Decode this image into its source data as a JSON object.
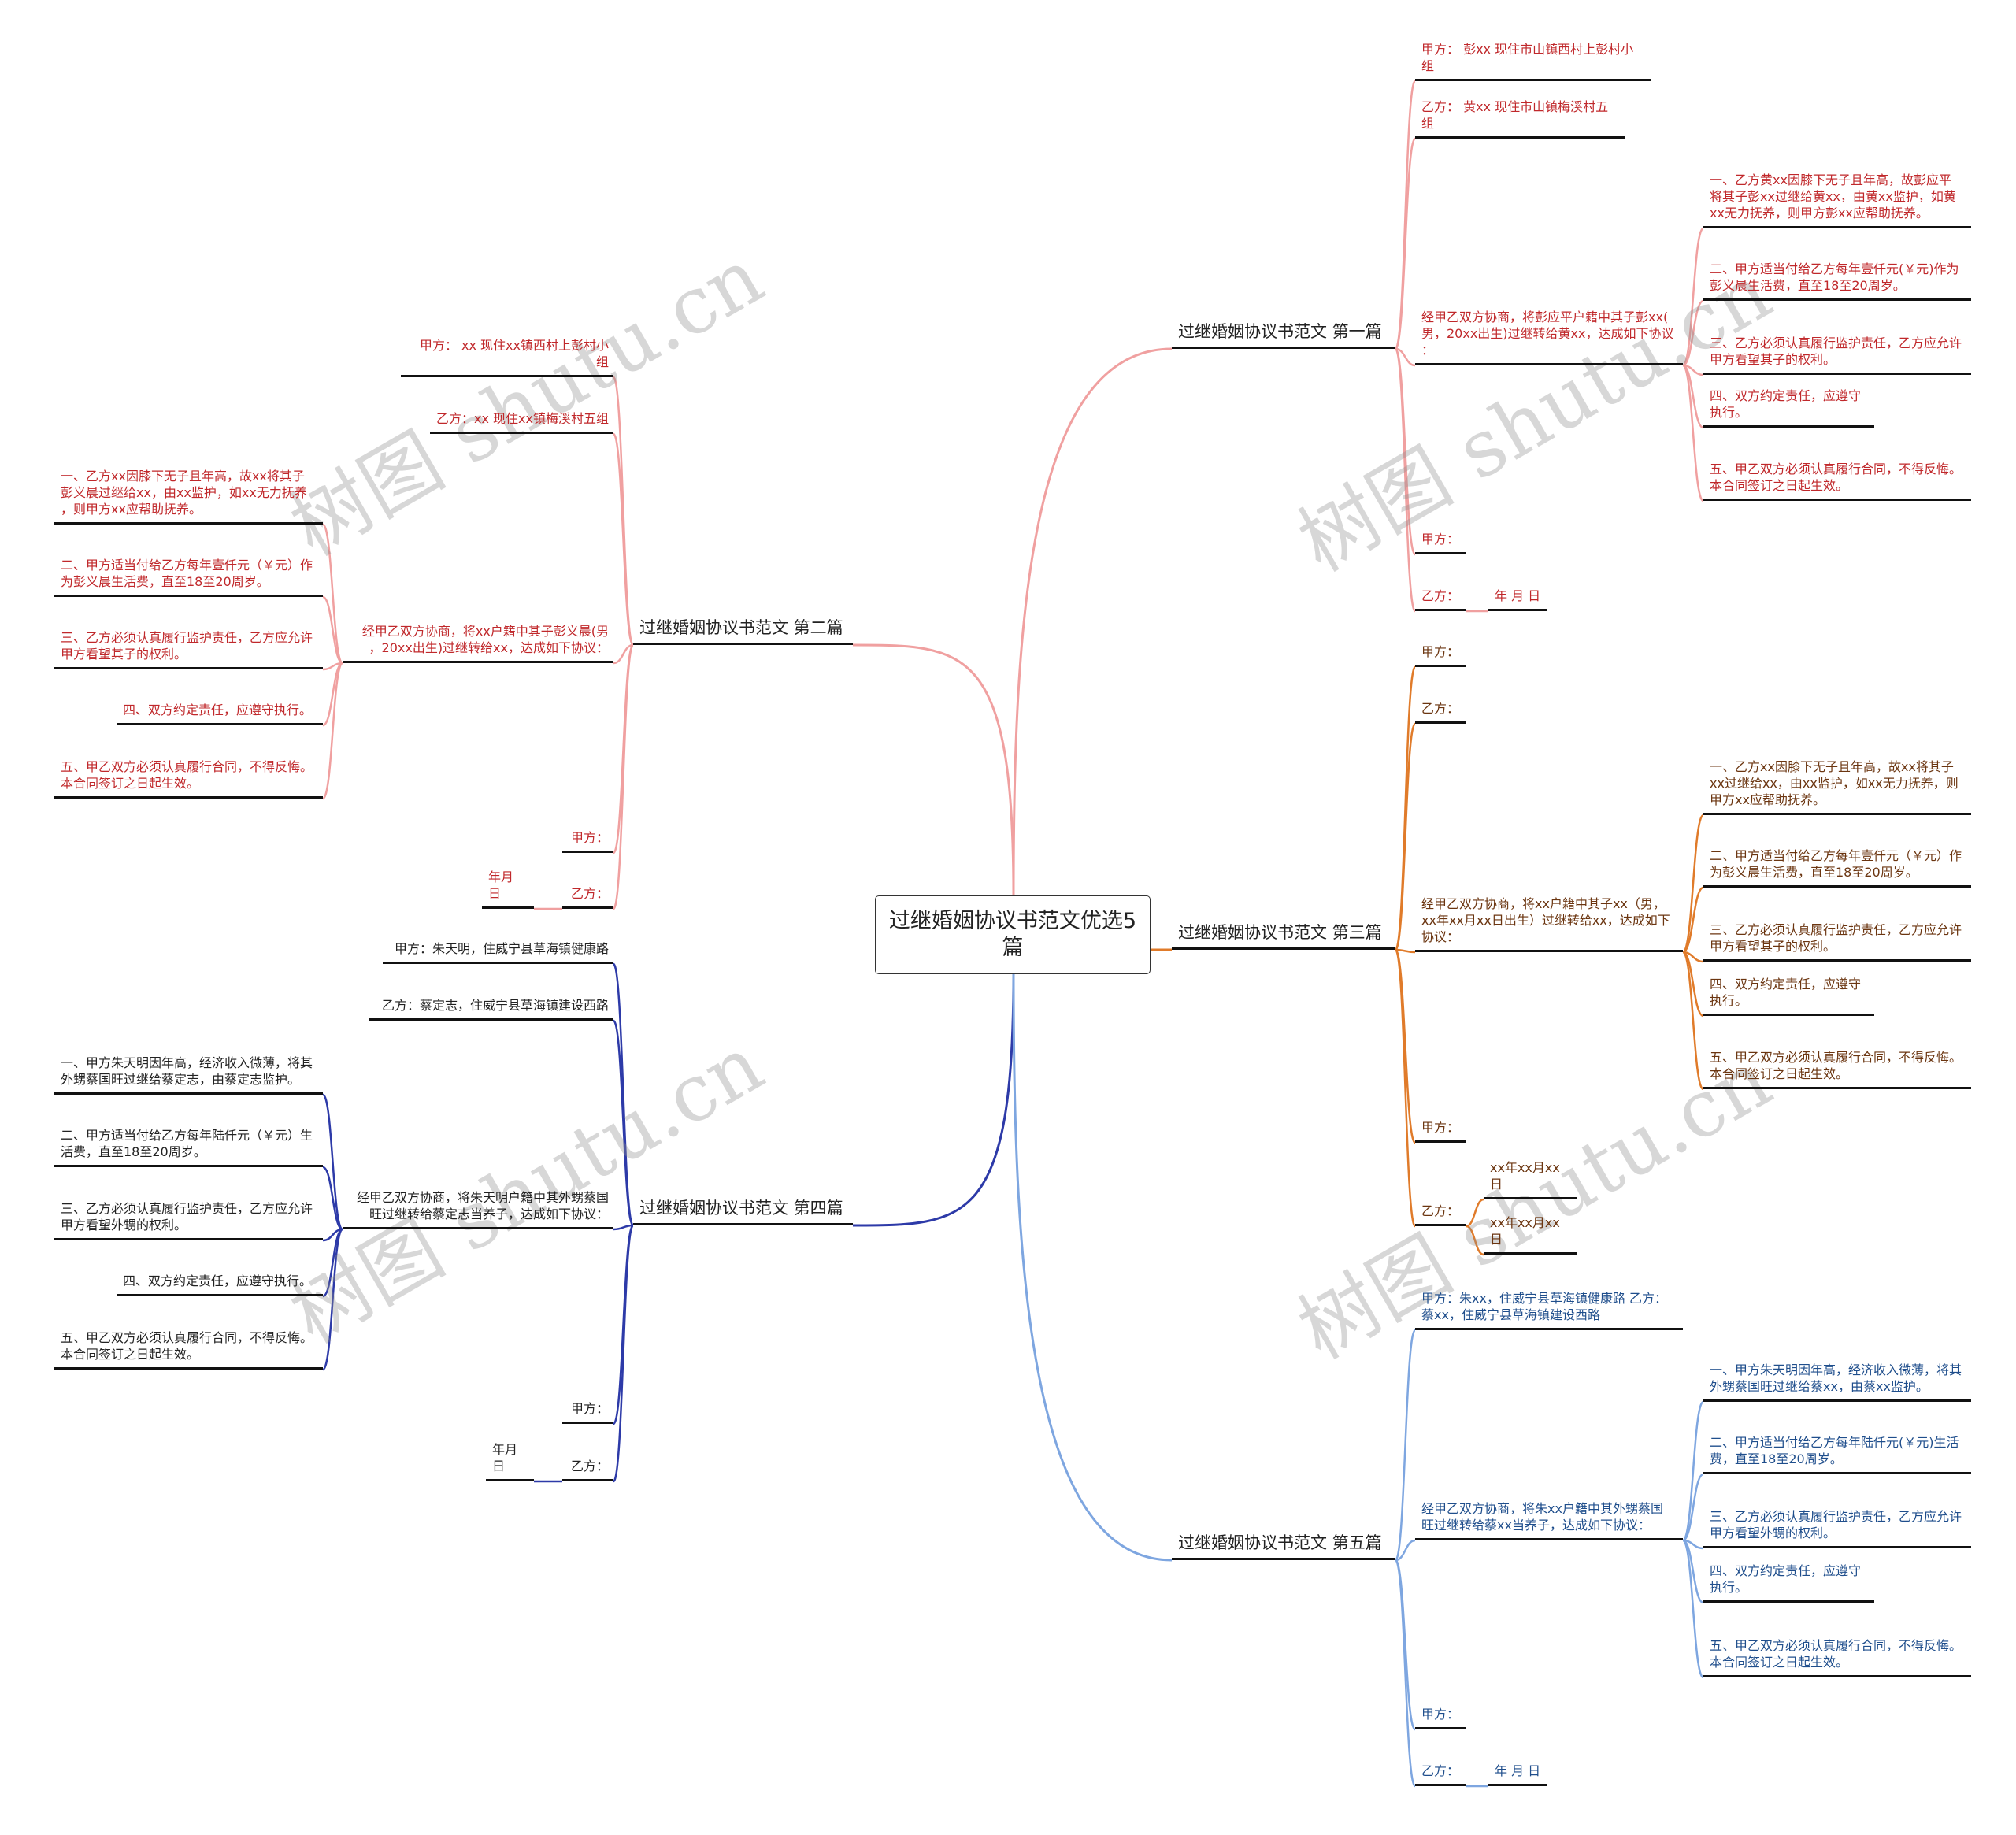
{
  "center_title": "过继婚姻协议书范文优选5篇",
  "watermark": "树图 shutu.cn",
  "branches": [
    {
      "label": "过继婚姻协议书范文 第一篇",
      "line_color": "#f0a0a0",
      "text_color": "#c0282b",
      "items": [
        {
          "text": "甲方： 彭xx 现住市山镇西村上彭村小组"
        },
        {
          "text": "乙方： 黄xx 现住市山镇梅溪村五组"
        },
        {
          "text": "经甲乙双方协商，将彭应平户籍中其子彭xx(\n男，20xx出生)过继转给黄xx，达成如下协议\n：",
          "children": [
            {
              "text": "一、乙方黄xx因膝下无子且年高，故彭应平\n将其子彭xx过继给黄xx，由黄xx监护，如黄\nxx无力抚养，则甲方彭xx应帮助抚养。"
            },
            {
              "text": "二、甲方适当付给乙方每年壹仟元(￥元)作为\n彭义晨生活费，直至18至20周岁。"
            },
            {
              "text": "三、乙方必须认真履行监护责任，乙方应允许\n甲方看望其子的权利。"
            },
            {
              "text": "四、双方约定责任，应遵守执行。"
            },
            {
              "text": "五、甲乙双方必须认真履行合同，不得反悔。\n本合同签订之日起生效。"
            }
          ]
        },
        {
          "text": "甲方："
        },
        {
          "text": "乙方：",
          "children": [
            {
              "text": "年 月 日"
            }
          ]
        }
      ]
    },
    {
      "label": "过继婚姻协议书范文 第二篇",
      "line_color": "#f0a0a0",
      "text_color": "#c0282b",
      "items": [
        {
          "text": "甲方： xx 现住xx镇西村上彭村小组"
        },
        {
          "text": "乙方：xx 现住xx镇梅溪村五组"
        },
        {
          "text": "经甲乙双方协商，将xx户籍中其子彭义晨(男\n，20xx出生)过继转给xx，达成如下协议：",
          "children": [
            {
              "text": "一、乙方xx因膝下无子且年高，故xx将其子\n彭义晨过继给xx，由xx监护，如xx无力抚养\n，则甲方xx应帮助抚养。"
            },
            {
              "text": "二、甲方适当付给乙方每年壹仟元（￥元）作\n为彭义晨生活费，直至18至20周岁。"
            },
            {
              "text": "三、乙方必须认真履行监护责任，乙方应允许\n甲方看望其子的权利。"
            },
            {
              "text": "四、双方约定责任，应遵守执行。"
            },
            {
              "text": "五、甲乙双方必须认真履行合同，不得反悔。\n本合同签订之日起生效。"
            }
          ]
        },
        {
          "text": "甲方："
        },
        {
          "text": "乙方：",
          "children": [
            {
              "text": "年月 日"
            }
          ]
        }
      ]
    },
    {
      "label": "过继婚姻协议书范文 第三篇",
      "line_color": "#e07b2a",
      "text_color": "#6b3510",
      "items": [
        {
          "text": "甲方："
        },
        {
          "text": "乙方："
        },
        {
          "text": "经甲乙双方协商，将xx户籍中其子xx（男，\nxx年xx月xx日出生）过继转给xx，达成如下\n协议：",
          "children": [
            {
              "text": "一、乙方xx因膝下无子且年高，故xx将其子\nxx过继给xx，由xx监护，如xx无力抚养，则\n甲方xx应帮助抚养。"
            },
            {
              "text": "二、甲方适当付给乙方每年壹仟元（￥元）作\n为彭义晨生活费，直至18至20周岁。"
            },
            {
              "text": "三、乙方必须认真履行监护责任，乙方应允许\n甲方看望其子的权利。"
            },
            {
              "text": "四、双方约定责任，应遵守执行。"
            },
            {
              "text": "五、甲乙双方必须认真履行合同，不得反悔。\n本合同签订之日起生效。"
            }
          ]
        },
        {
          "text": "甲方："
        },
        {
          "text": "乙方：",
          "children": [
            {
              "text": "xx年xx月xx日"
            },
            {
              "text": "xx年xx月xx日"
            }
          ]
        }
      ]
    },
    {
      "label": "过继婚姻协议书范文 第四篇",
      "line_color": "#2d3aa8",
      "text_color": "#222222",
      "items": [
        {
          "text": "甲方：朱天明，住威宁县草海镇健康路"
        },
        {
          "text": "乙方：蔡定志，住威宁县草海镇建设西路"
        },
        {
          "text": "经甲乙双方协商，将朱天明户籍中其外甥蔡国\n旺过继转给蔡定志当养子，达成如下协议：",
          "children": [
            {
              "text": "一、甲方朱天明因年高，经济收入微薄，将其\n外甥蔡国旺过继给蔡定志，由蔡定志监护。"
            },
            {
              "text": "二、甲方适当付给乙方每年陆仟元（￥元）生\n活费，直至18至20周岁。"
            },
            {
              "text": "三、乙方必须认真履行监护责任，乙方应允许\n甲方看望外甥的权利。"
            },
            {
              "text": "四、双方约定责任，应遵守执行。"
            },
            {
              "text": "五、甲乙双方必须认真履行合同，不得反悔。\n本合同签订之日起生效。"
            }
          ]
        },
        {
          "text": "甲方："
        },
        {
          "text": "乙方：",
          "children": [
            {
              "text": "年月日"
            }
          ]
        }
      ]
    },
    {
      "label": "过继婚姻协议书范文 第五篇",
      "line_color": "#7ea6e0",
      "text_color": "#1f4e8c",
      "items": [
        {
          "text": "甲方：朱xx，住威宁县草海镇健康路 乙方：\n蔡xx，住威宁县草海镇建设西路"
        },
        {
          "text": "经甲乙双方协商，将朱xx户籍中其外甥蔡国\n旺过继转给蔡xx当养子，达成如下协议：",
          "children": [
            {
              "text": "一、甲方朱天明因年高，经济收入微薄，将其\n外甥蔡国旺过继给蔡xx，由蔡xx监护。"
            },
            {
              "text": "二、甲方适当付给乙方每年陆仟元(￥元)生活\n费，直至18至20周岁。"
            },
            {
              "text": "三、乙方必须认真履行监护责任，乙方应允许\n甲方看望外甥的权利。"
            },
            {
              "text": "四、双方约定责任，应遵守执行。"
            },
            {
              "text": "五、甲乙双方必须认真履行合同，不得反悔。\n本合同签订之日起生效。"
            }
          ]
        },
        {
          "text": "甲方："
        },
        {
          "text": "乙方：",
          "children": [
            {
              "text": "年 月 日"
            }
          ]
        }
      ]
    }
  ]
}
